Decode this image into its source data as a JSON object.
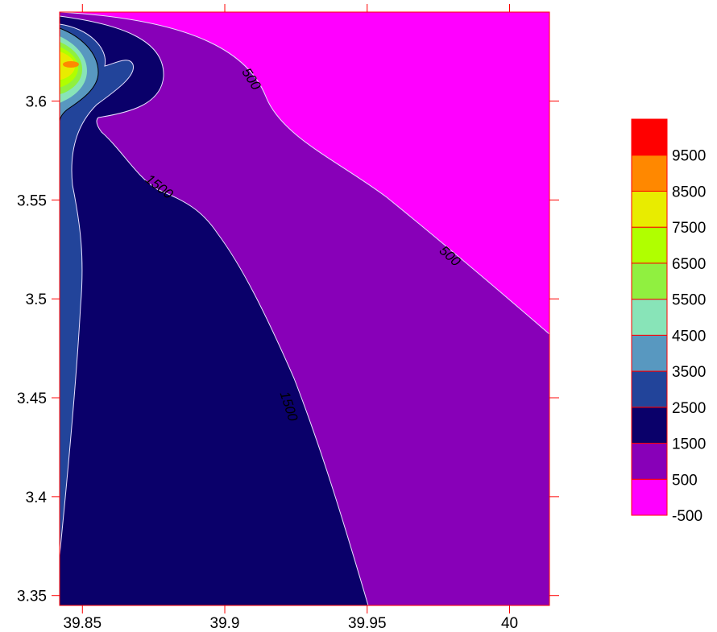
{
  "chart_data": {
    "type": "contour",
    "title": "",
    "xlabel": "",
    "ylabel": "",
    "xlim": [
      39.842,
      40.014
    ],
    "ylim": [
      3.345,
      3.645
    ],
    "grid": false,
    "x_ticks": [
      {
        "value": 39.85,
        "label": "39.85"
      },
      {
        "value": 39.9,
        "label": "39.9"
      },
      {
        "value": 39.95,
        "label": "39.95"
      },
      {
        "value": 40.0,
        "label": "40"
      }
    ],
    "y_ticks": [
      {
        "value": 3.35,
        "label": "3.35"
      },
      {
        "value": 3.4,
        "label": "3.4"
      },
      {
        "value": 3.45,
        "label": "3.45"
      },
      {
        "value": 3.5,
        "label": "3.5"
      },
      {
        "value": 3.55,
        "label": "3.55"
      },
      {
        "value": 3.6,
        "label": "3.6"
      }
    ],
    "contour_levels": [
      -500,
      500,
      1500,
      2500,
      3500,
      4500,
      5500,
      6500,
      7500,
      8500,
      9500
    ],
    "legend": {
      "placement": "right",
      "bands": [
        {
          "label": "-500",
          "color": "#ff00ff"
        },
        {
          "label": "500",
          "color": "#8800b8"
        },
        {
          "label": "1500",
          "color": "#0a006a"
        },
        {
          "label": "2500",
          "color": "#22449a"
        },
        {
          "label": "3500",
          "color": "#5898c0"
        },
        {
          "label": "4500",
          "color": "#88e4b8"
        },
        {
          "label": "5500",
          "color": "#90f040"
        },
        {
          "label": "6500",
          "color": "#b0ff00"
        },
        {
          "label": "7500",
          "color": "#e8ec00"
        },
        {
          "label": "8500",
          "color": "#ff8800"
        },
        {
          "label": "9500",
          "color": "#ff0000"
        }
      ]
    },
    "contour_labels": [
      {
        "text": "500",
        "x": 39.908,
        "y": 3.61
      },
      {
        "text": "500",
        "x": 39.978,
        "y": 3.52
      },
      {
        "text": "1500",
        "x": 39.876,
        "y": 3.555
      },
      {
        "text": "1500",
        "x": 39.921,
        "y": 3.445
      }
    ],
    "frame_color": "#ff0000"
  }
}
